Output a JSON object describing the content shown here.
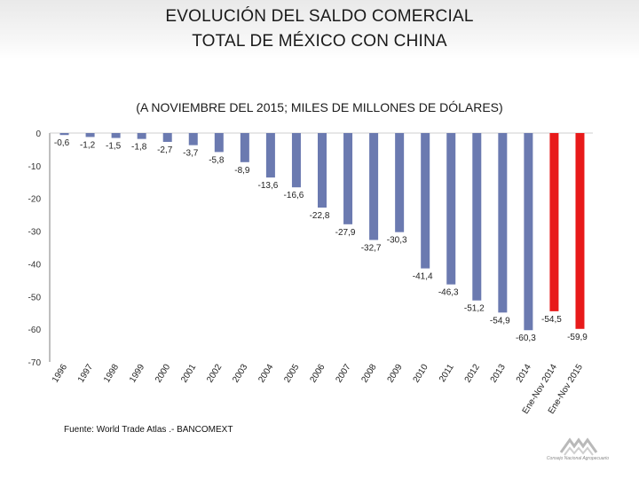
{
  "title_line1": "EVOLUCIÓN DEL SALDO COMERCIAL",
  "title_line2": "TOTAL DE  MÉXICO CON CHINA",
  "subtitle": "(A NOVIEMBRE DEL 2015;  MILES DE MILLONES DE DÓLARES)",
  "source": "Fuente:  World Trade Atlas .- BANCOMEXT",
  "logo_text": "Consejo Nacional Agropecuario",
  "colors": {
    "bar": "#6b7ab0",
    "highlight": "#e81a1a",
    "axis": "#7f7f7f"
  },
  "chart_data": {
    "type": "bar",
    "categories": [
      "1996",
      "1997",
      "1998",
      "1999",
      "2000",
      "2001",
      "2002",
      "2003",
      "2004",
      "2005",
      "2006",
      "2007",
      "2008",
      "2009",
      "2010",
      "2011",
      "2012",
      "2013",
      "2014",
      "Ene-Nov 2014",
      "Ene-Nov 2015"
    ],
    "values": [
      -0.6,
      -1.2,
      -1.5,
      -1.8,
      -2.7,
      -3.7,
      -5.8,
      -8.9,
      -13.6,
      -16.6,
      -22.8,
      -27.9,
      -32.7,
      -30.3,
      -41.4,
      -46.3,
      -51.2,
      -54.9,
      -60.3,
      -54.5,
      -59.9
    ],
    "value_labels": [
      "-0,6",
      "-1,2",
      "-1,5",
      "-1,8",
      "-2,7",
      "-3,7",
      "-5,8",
      "-8,9",
      "-13,6",
      "-16,6",
      "-22,8",
      "-27,9",
      "-32,7",
      "-30,3",
      "-41,4",
      "-46,3",
      "-51,2",
      "-54,9",
      "-60,3",
      "-54,5",
      "-59,9"
    ],
    "highlight_categories": [
      "Ene-Nov 2014",
      "Ene-Nov 2015"
    ],
    "yticks": [
      0,
      -10,
      -20,
      -30,
      -40,
      -50,
      -60,
      -70
    ],
    "ylim": [
      -70,
      0
    ],
    "title": "EVOLUCIÓN DEL SALDO COMERCIAL TOTAL DE  MÉXICO CON CHINA",
    "ylabel": "",
    "xlabel": ""
  }
}
